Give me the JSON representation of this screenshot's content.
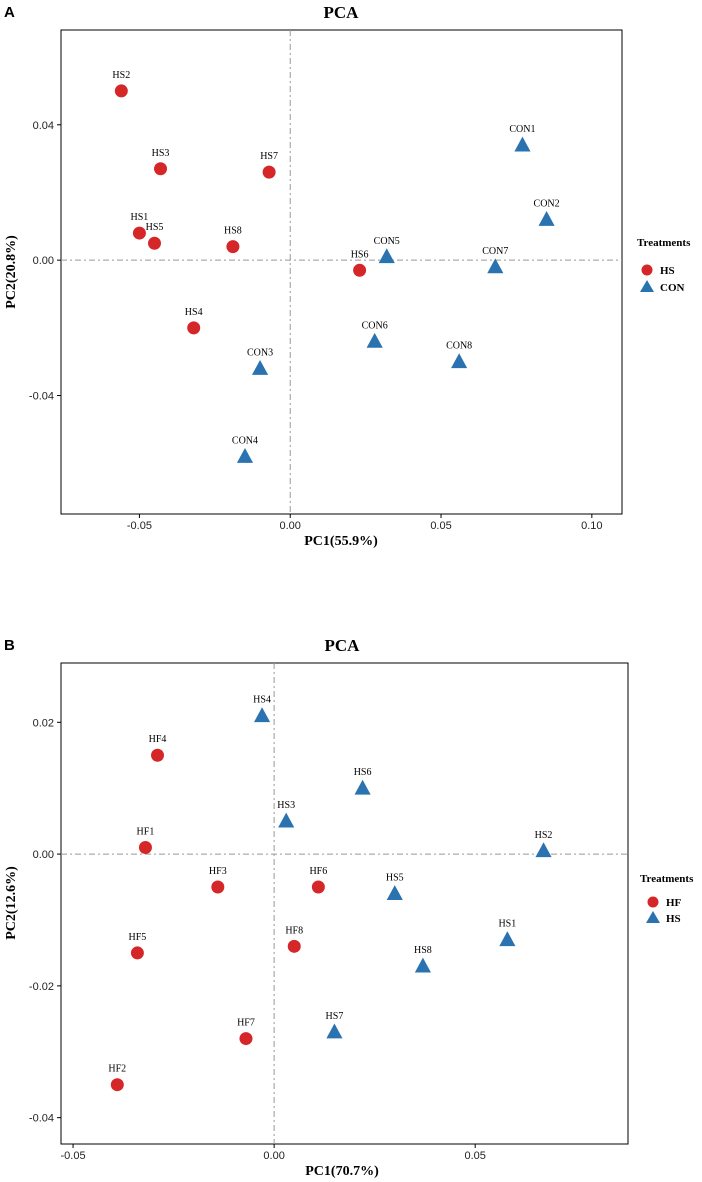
{
  "colors": {
    "red": "#d62728",
    "blue": "#2b73b0"
  },
  "chart_data": [
    {
      "panel": "A",
      "type": "scatter",
      "title": "PCA",
      "xlabel": "PC1(55.9%)",
      "ylabel": "PC2(20.8%)",
      "xlim": [
        -0.076,
        0.11
      ],
      "ylim": [
        -0.075,
        0.068
      ],
      "xticks": [
        -0.05,
        0.0,
        0.05,
        0.1
      ],
      "xticklabels": [
        "-0.05",
        "0.00",
        "0.05",
        "0.10"
      ],
      "yticks": [
        -0.04,
        0.0,
        0.04
      ],
      "yticklabels": [
        "-0.04",
        "0.00",
        "0.04"
      ],
      "legend": {
        "title": "Treatments",
        "position": "right",
        "entries": [
          {
            "label": "HS",
            "shape": "circle"
          },
          {
            "label": "CON",
            "shape": "triangle"
          }
        ]
      },
      "series": [
        {
          "name": "HS",
          "shape": "circle",
          "points": [
            {
              "label": "HS2",
              "x": -0.056,
              "y": 0.05
            },
            {
              "label": "HS3",
              "x": -0.043,
              "y": 0.027
            },
            {
              "label": "HS7",
              "x": -0.007,
              "y": 0.026
            },
            {
              "label": "HS1",
              "x": -0.05,
              "y": 0.008
            },
            {
              "label": "HS5",
              "x": -0.045,
              "y": 0.005
            },
            {
              "label": "HS8",
              "x": -0.019,
              "y": 0.004
            },
            {
              "label": "HS6",
              "x": 0.023,
              "y": -0.003
            },
            {
              "label": "HS4",
              "x": -0.032,
              "y": -0.02
            }
          ]
        },
        {
          "name": "CON",
          "shape": "triangle",
          "points": [
            {
              "label": "CON1",
              "x": 0.077,
              "y": 0.034
            },
            {
              "label": "CON2",
              "x": 0.085,
              "y": 0.012
            },
            {
              "label": "CON5",
              "x": 0.032,
              "y": 0.001
            },
            {
              "label": "CON7",
              "x": 0.068,
              "y": -0.002
            },
            {
              "label": "CON6",
              "x": 0.028,
              "y": -0.024
            },
            {
              "label": "CON8",
              "x": 0.056,
              "y": -0.03
            },
            {
              "label": "CON3",
              "x": -0.01,
              "y": -0.032
            },
            {
              "label": "CON4",
              "x": -0.015,
              "y": -0.058
            }
          ]
        }
      ]
    },
    {
      "panel": "B",
      "type": "scatter",
      "title": "PCA",
      "xlabel": "PC1(70.7%)",
      "ylabel": "PC2(12.6%)",
      "xlim": [
        -0.053,
        0.088
      ],
      "ylim": [
        -0.044,
        0.029
      ],
      "xticks": [
        -0.05,
        0.0,
        0.05
      ],
      "xticklabels": [
        "-0.05",
        "0.00",
        "0.05"
      ],
      "yticks": [
        -0.04,
        -0.02,
        0.0,
        0.02
      ],
      "yticklabels": [
        "-0.04",
        "-0.02",
        "0.00",
        "0.02"
      ],
      "legend": {
        "title": "Treatments",
        "position": "right",
        "entries": [
          {
            "label": "HF",
            "shape": "circle"
          },
          {
            "label": "HS",
            "shape": "triangle"
          }
        ]
      },
      "series": [
        {
          "name": "HF",
          "shape": "circle",
          "points": [
            {
              "label": "HF4",
              "x": -0.029,
              "y": 0.015
            },
            {
              "label": "HF1",
              "x": -0.032,
              "y": 0.001
            },
            {
              "label": "HF3",
              "x": -0.014,
              "y": -0.005
            },
            {
              "label": "HF6",
              "x": 0.011,
              "y": -0.005
            },
            {
              "label": "HF5",
              "x": -0.034,
              "y": -0.015
            },
            {
              "label": "HF8",
              "x": 0.005,
              "y": -0.014
            },
            {
              "label": "HF7",
              "x": -0.007,
              "y": -0.028
            },
            {
              "label": "HF2",
              "x": -0.039,
              "y": -0.035
            }
          ]
        },
        {
          "name": "HS",
          "shape": "triangle",
          "points": [
            {
              "label": "HS4",
              "x": -0.003,
              "y": 0.021
            },
            {
              "label": "HS6",
              "x": 0.022,
              "y": 0.01
            },
            {
              "label": "HS3",
              "x": 0.003,
              "y": 0.005
            },
            {
              "label": "HS2",
              "x": 0.067,
              "y": 0.0005
            },
            {
              "label": "HS5",
              "x": 0.03,
              "y": -0.006
            },
            {
              "label": "HS1",
              "x": 0.058,
              "y": -0.013
            },
            {
              "label": "HS8",
              "x": 0.037,
              "y": -0.017
            },
            {
              "label": "HS7",
              "x": 0.015,
              "y": -0.027
            }
          ]
        }
      ]
    }
  ]
}
